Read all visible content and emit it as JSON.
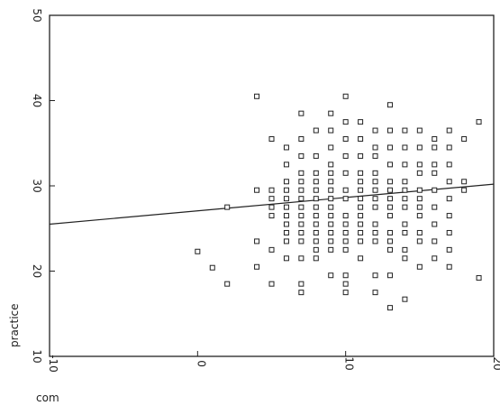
{
  "chart_data": {
    "type": "scatter",
    "xlabel": "com",
    "ylabel": "practice",
    "xlim": [
      -10,
      20
    ],
    "ylim": [
      10,
      50
    ],
    "xticks": [
      "-10",
      "0",
      "10",
      "20"
    ],
    "yticks": [
      "10",
      "20",
      "30",
      "40",
      "50"
    ],
    "grid": false,
    "regression_line": {
      "x": [
        -10,
        20
      ],
      "y": [
        25.5,
        30.2
      ]
    },
    "points": [
      {
        "x": 0,
        "y": 22.3
      },
      {
        "x": 1,
        "y": 20.4
      },
      {
        "x": 2,
        "y": 18.5
      },
      {
        "x": 2,
        "y": 27.5
      },
      {
        "x": 4,
        "y": 40.5
      },
      {
        "x": 4,
        "y": 29.5
      },
      {
        "x": 4,
        "y": 23.5
      },
      {
        "x": 4,
        "y": 20.5
      },
      {
        "x": 5,
        "y": 35.5
      },
      {
        "x": 5,
        "y": 29.5
      },
      {
        "x": 5,
        "y": 28.5
      },
      {
        "x": 5,
        "y": 27.5
      },
      {
        "x": 5,
        "y": 26.5
      },
      {
        "x": 5,
        "y": 22.5
      },
      {
        "x": 5,
        "y": 18.5
      },
      {
        "x": 6,
        "y": 34.5
      },
      {
        "x": 6,
        "y": 32.5
      },
      {
        "x": 6,
        "y": 30.5
      },
      {
        "x": 6,
        "y": 29.5
      },
      {
        "x": 6,
        "y": 28.5
      },
      {
        "x": 6,
        "y": 27.5
      },
      {
        "x": 6,
        "y": 26.5
      },
      {
        "x": 6,
        "y": 25.5
      },
      {
        "x": 6,
        "y": 24.5
      },
      {
        "x": 6,
        "y": 23.5
      },
      {
        "x": 6,
        "y": 21.5
      },
      {
        "x": 7,
        "y": 38.5
      },
      {
        "x": 7,
        "y": 35.5
      },
      {
        "x": 7,
        "y": 33.5
      },
      {
        "x": 7,
        "y": 31.5
      },
      {
        "x": 7,
        "y": 30.5
      },
      {
        "x": 7,
        "y": 29.5
      },
      {
        "x": 7,
        "y": 28.5
      },
      {
        "x": 7,
        "y": 27.5
      },
      {
        "x": 7,
        "y": 26.5
      },
      {
        "x": 7,
        "y": 25.5
      },
      {
        "x": 7,
        "y": 24.5
      },
      {
        "x": 7,
        "y": 23.5
      },
      {
        "x": 7,
        "y": 21.5
      },
      {
        "x": 7,
        "y": 18.5
      },
      {
        "x": 7,
        "y": 17.5
      },
      {
        "x": 8,
        "y": 36.5
      },
      {
        "x": 8,
        "y": 33.5
      },
      {
        "x": 8,
        "y": 31.5
      },
      {
        "x": 8,
        "y": 30.5
      },
      {
        "x": 8,
        "y": 29.5
      },
      {
        "x": 8,
        "y": 28.5
      },
      {
        "x": 8,
        "y": 27.5
      },
      {
        "x": 8,
        "y": 26.5
      },
      {
        "x": 8,
        "y": 25.5
      },
      {
        "x": 8,
        "y": 24.5
      },
      {
        "x": 8,
        "y": 23.5
      },
      {
        "x": 8,
        "y": 22.5
      },
      {
        "x": 8,
        "y": 21.5
      },
      {
        "x": 9,
        "y": 38.5
      },
      {
        "x": 9,
        "y": 36.5
      },
      {
        "x": 9,
        "y": 34.5
      },
      {
        "x": 9,
        "y": 32.5
      },
      {
        "x": 9,
        "y": 31.5
      },
      {
        "x": 9,
        "y": 30.5
      },
      {
        "x": 9,
        "y": 29.5
      },
      {
        "x": 9,
        "y": 28.5
      },
      {
        "x": 9,
        "y": 27.5
      },
      {
        "x": 9,
        "y": 26.5
      },
      {
        "x": 9,
        "y": 25.5
      },
      {
        "x": 9,
        "y": 24.5
      },
      {
        "x": 9,
        "y": 23.5
      },
      {
        "x": 9,
        "y": 22.5
      },
      {
        "x": 9,
        "y": 19.5
      },
      {
        "x": 10,
        "y": 40.5
      },
      {
        "x": 10,
        "y": 37.5
      },
      {
        "x": 10,
        "y": 35.5
      },
      {
        "x": 10,
        "y": 33.5
      },
      {
        "x": 10,
        "y": 31.5
      },
      {
        "x": 10,
        "y": 29.5
      },
      {
        "x": 10,
        "y": 28.5
      },
      {
        "x": 10,
        "y": 26.5
      },
      {
        "x": 10,
        "y": 25.5
      },
      {
        "x": 10,
        "y": 24.5
      },
      {
        "x": 10,
        "y": 23.5
      },
      {
        "x": 10,
        "y": 22.5
      },
      {
        "x": 10,
        "y": 19.5
      },
      {
        "x": 10,
        "y": 18.5
      },
      {
        "x": 10,
        "y": 17.5
      },
      {
        "x": 11,
        "y": 37.5
      },
      {
        "x": 11,
        "y": 35.5
      },
      {
        "x": 11,
        "y": 33.5
      },
      {
        "x": 11,
        "y": 31.5
      },
      {
        "x": 11,
        "y": 30.5
      },
      {
        "x": 11,
        "y": 29.5
      },
      {
        "x": 11,
        "y": 28.5
      },
      {
        "x": 11,
        "y": 27.5
      },
      {
        "x": 11,
        "y": 26.5
      },
      {
        "x": 11,
        "y": 25.5
      },
      {
        "x": 11,
        "y": 24.5
      },
      {
        "x": 11,
        "y": 23.5
      },
      {
        "x": 11,
        "y": 21.5
      },
      {
        "x": 12,
        "y": 36.5
      },
      {
        "x": 12,
        "y": 34.5
      },
      {
        "x": 12,
        "y": 33.5
      },
      {
        "x": 12,
        "y": 31.5
      },
      {
        "x": 12,
        "y": 30.5
      },
      {
        "x": 12,
        "y": 29.5
      },
      {
        "x": 12,
        "y": 28.5
      },
      {
        "x": 12,
        "y": 27.5
      },
      {
        "x": 12,
        "y": 25.5
      },
      {
        "x": 12,
        "y": 24.5
      },
      {
        "x": 12,
        "y": 23.5
      },
      {
        "x": 12,
        "y": 19.5
      },
      {
        "x": 12,
        "y": 17.5
      },
      {
        "x": 13,
        "y": 39.5
      },
      {
        "x": 13,
        "y": 36.5
      },
      {
        "x": 13,
        "y": 34.5
      },
      {
        "x": 13,
        "y": 32.5
      },
      {
        "x": 13,
        "y": 30.5
      },
      {
        "x": 13,
        "y": 29.5
      },
      {
        "x": 13,
        "y": 28.5
      },
      {
        "x": 13,
        "y": 27.5
      },
      {
        "x": 13,
        "y": 26.5
      },
      {
        "x": 13,
        "y": 24.5
      },
      {
        "x": 13,
        "y": 23.5
      },
      {
        "x": 13,
        "y": 22.5
      },
      {
        "x": 13,
        "y": 19.5
      },
      {
        "x": 13,
        "y": 15.7
      },
      {
        "x": 14,
        "y": 36.5
      },
      {
        "x": 14,
        "y": 34.5
      },
      {
        "x": 14,
        "y": 32.5
      },
      {
        "x": 14,
        "y": 30.5
      },
      {
        "x": 14,
        "y": 29.5
      },
      {
        "x": 14,
        "y": 28.5
      },
      {
        "x": 14,
        "y": 27.5
      },
      {
        "x": 14,
        "y": 25.5
      },
      {
        "x": 14,
        "y": 24.5
      },
      {
        "x": 14,
        "y": 22.5
      },
      {
        "x": 14,
        "y": 21.5
      },
      {
        "x": 14,
        "y": 16.7
      },
      {
        "x": 15,
        "y": 36.5
      },
      {
        "x": 15,
        "y": 34.5
      },
      {
        "x": 15,
        "y": 32.5
      },
      {
        "x": 15,
        "y": 31.5
      },
      {
        "x": 15,
        "y": 29.5
      },
      {
        "x": 15,
        "y": 28.5
      },
      {
        "x": 15,
        "y": 27.5
      },
      {
        "x": 15,
        "y": 26.5
      },
      {
        "x": 15,
        "y": 24.5
      },
      {
        "x": 15,
        "y": 23.5
      },
      {
        "x": 15,
        "y": 20.5
      },
      {
        "x": 16,
        "y": 35.5
      },
      {
        "x": 16,
        "y": 34.5
      },
      {
        "x": 16,
        "y": 32.5
      },
      {
        "x": 16,
        "y": 31.5
      },
      {
        "x": 16,
        "y": 29.5
      },
      {
        "x": 16,
        "y": 27.5
      },
      {
        "x": 16,
        "y": 25.5
      },
      {
        "x": 16,
        "y": 23.5
      },
      {
        "x": 16,
        "y": 21.5
      },
      {
        "x": 17,
        "y": 36.5
      },
      {
        "x": 17,
        "y": 34.5
      },
      {
        "x": 17,
        "y": 32.5
      },
      {
        "x": 17,
        "y": 30.5
      },
      {
        "x": 17,
        "y": 28.5
      },
      {
        "x": 17,
        "y": 26.5
      },
      {
        "x": 17,
        "y": 24.5
      },
      {
        "x": 17,
        "y": 22.5
      },
      {
        "x": 17,
        "y": 20.5
      },
      {
        "x": 18,
        "y": 35.5
      },
      {
        "x": 18,
        "y": 30.5
      },
      {
        "x": 18,
        "y": 29.5
      },
      {
        "x": 19,
        "y": 37.5
      },
      {
        "x": 19,
        "y": 19.2
      }
    ]
  }
}
